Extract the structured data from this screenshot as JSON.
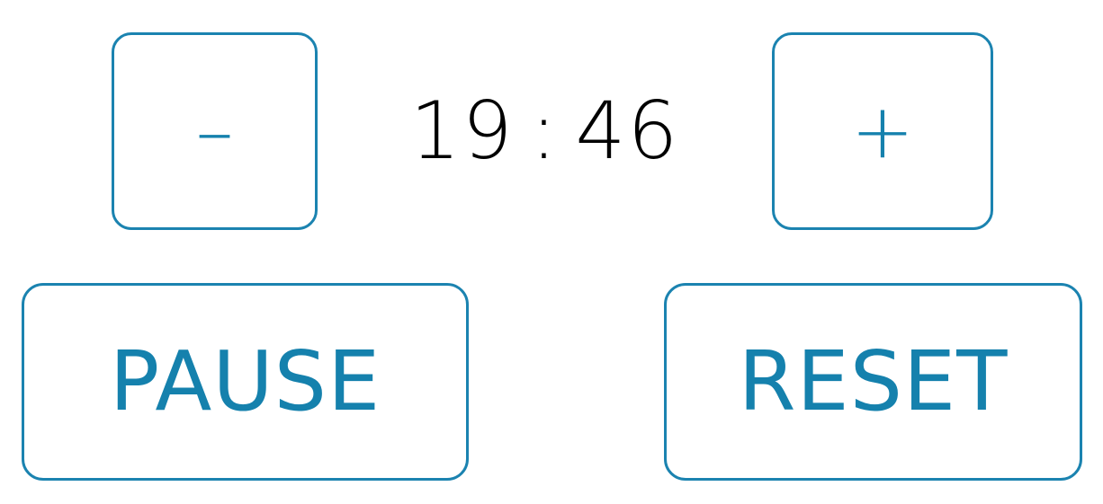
{
  "controls": {
    "decrement_label": "–",
    "increment_label": "+",
    "pause_label": "PAUSE",
    "reset_label": "RESET"
  },
  "timer": {
    "minutes": "19",
    "separator": ":",
    "seconds": "46"
  },
  "colors": {
    "accent": "#1581ad",
    "text": "#000000",
    "background": "#ffffff"
  }
}
